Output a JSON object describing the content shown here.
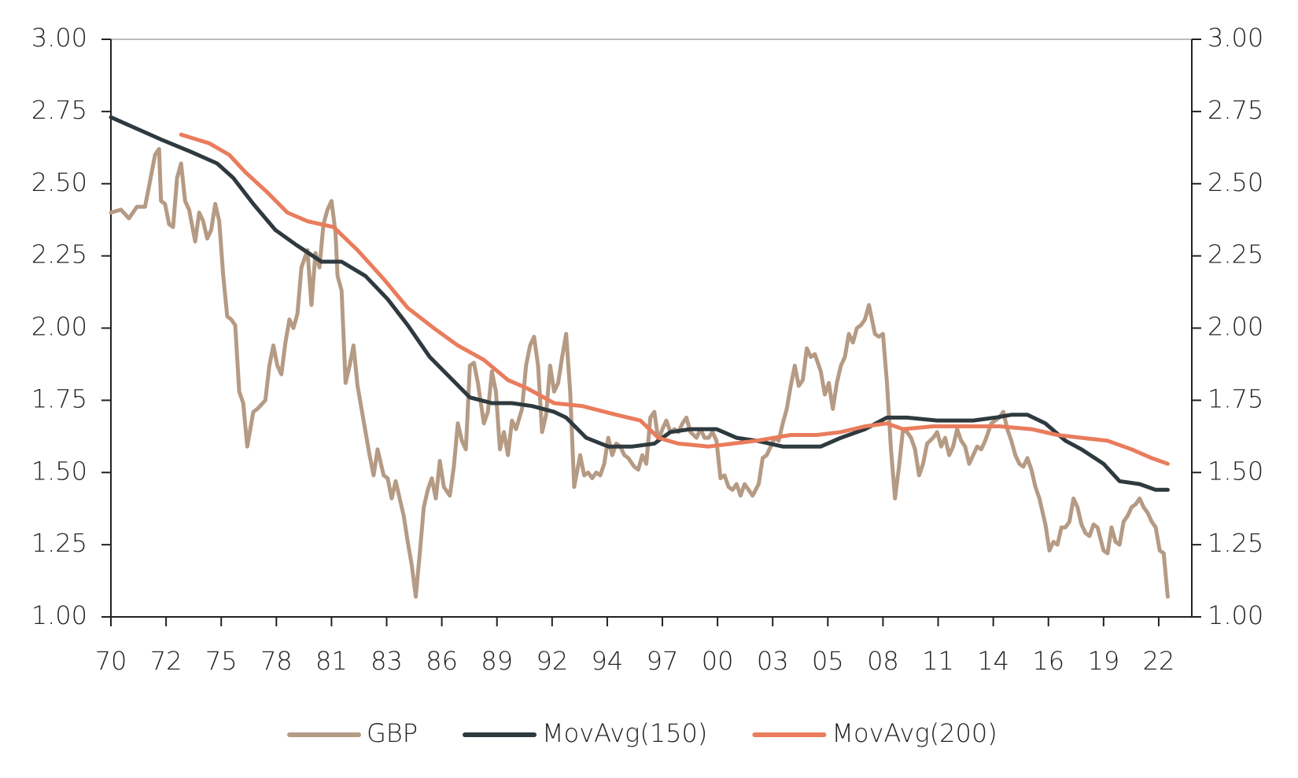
{
  "chart_data": {
    "type": "line",
    "xlim": [
      1970,
      2023.9
    ],
    "xticks": [
      {
        "value": 1970,
        "label": "70"
      },
      {
        "value": 1972.75,
        "label": "72"
      },
      {
        "value": 1975.5,
        "label": "75"
      },
      {
        "value": 1978.25,
        "label": "78"
      },
      {
        "value": 1981,
        "label": "81"
      },
      {
        "value": 1983.75,
        "label": "83"
      },
      {
        "value": 1986.5,
        "label": "86"
      },
      {
        "value": 1989.25,
        "label": "89"
      },
      {
        "value": 1992,
        "label": "92"
      },
      {
        "value": 1994.75,
        "label": "94"
      },
      {
        "value": 1997.5,
        "label": "97"
      },
      {
        "value": 2000.25,
        "label": "00"
      },
      {
        "value": 2003,
        "label": "03"
      },
      {
        "value": 2005.75,
        "label": "05"
      },
      {
        "value": 2008.5,
        "label": "08"
      },
      {
        "value": 2011.25,
        "label": "11"
      },
      {
        "value": 2014,
        "label": "14"
      },
      {
        "value": 2016.75,
        "label": "16"
      },
      {
        "value": 2019.5,
        "label": "19"
      },
      {
        "value": 2022.25,
        "label": "22"
      }
    ],
    "ylim": [
      1,
      3
    ],
    "yticks": [
      {
        "value": 1,
        "label": "1.00"
      },
      {
        "value": 1.25,
        "label": "1.25"
      },
      {
        "value": 1.5,
        "label": "1.50"
      },
      {
        "value": 1.75,
        "label": "1.75"
      },
      {
        "value": 2,
        "label": "2.00"
      },
      {
        "value": 2.25,
        "label": "2.25"
      },
      {
        "value": 2.5,
        "label": "2.50"
      },
      {
        "value": 2.75,
        "label": "2.75"
      },
      {
        "value": 3,
        "label": "3.00"
      }
    ],
    "y2lim": [
      1,
      3
    ],
    "y2ticks": [
      {
        "value": 1,
        "label": "1.00"
      },
      {
        "value": 1.25,
        "label": "1.25"
      },
      {
        "value": 1.5,
        "label": "1.50"
      },
      {
        "value": 1.75,
        "label": "1.75"
      },
      {
        "value": 2,
        "label": "2.00"
      },
      {
        "value": 2.25,
        "label": "2.25"
      },
      {
        "value": 2.5,
        "label": "2.50"
      },
      {
        "value": 2.75,
        "label": "2.75"
      },
      {
        "value": 3,
        "label": "3.00"
      }
    ],
    "grid": false,
    "legend": "bottom",
    "series": [
      {
        "name": "GBP",
        "color": "#b59a84",
        "x": [
          1970.0,
          1970.5,
          1970.9,
          1971.1,
          1971.3,
          1971.7,
          1971.9,
          1972.2,
          1972.4,
          1972.5,
          1972.7,
          1972.9,
          1973.1,
          1973.3,
          1973.5,
          1973.7,
          1973.9,
          1974.2,
          1974.4,
          1974.6,
          1974.8,
          1975.0,
          1975.2,
          1975.4,
          1975.6,
          1975.8,
          1976.0,
          1976.2,
          1976.4,
          1976.6,
          1976.8,
          1977.1,
          1977.3,
          1977.7,
          1977.9,
          1978.1,
          1978.3,
          1978.5,
          1978.7,
          1978.9,
          1979.1,
          1979.3,
          1979.5,
          1979.8,
          1980.0,
          1980.2,
          1980.4,
          1980.6,
          1980.8,
          1981.0,
          1981.2,
          1981.3,
          1981.5,
          1981.7,
          1981.9,
          1982.1,
          1982.3,
          1982.5,
          1982.7,
          1982.9,
          1983.1,
          1983.3,
          1983.6,
          1983.8,
          1984.0,
          1984.2,
          1984.4,
          1984.6,
          1984.8,
          1985.0,
          1985.2,
          1985.4,
          1985.6,
          1985.8,
          1986.0,
          1986.2,
          1986.4,
          1986.6,
          1986.9,
          1987.1,
          1987.3,
          1987.5,
          1987.7,
          1987.9,
          1988.1,
          1988.3,
          1988.6,
          1988.8,
          1989.0,
          1989.2,
          1989.4,
          1989.6,
          1989.8,
          1990.0,
          1990.2,
          1990.5,
          1990.7,
          1990.9,
          1991.1,
          1991.3,
          1991.5,
          1991.7,
          1991.9,
          1992.1,
          1992.3,
          1992.5,
          1992.7,
          1992.9,
          1993.1,
          1993.4,
          1993.6,
          1993.8,
          1994.0,
          1994.2,
          1994.4,
          1994.6,
          1994.8,
          1995.0,
          1995.2,
          1995.4,
          1995.6,
          1995.8,
          1996.1,
          1996.3,
          1996.5,
          1996.7,
          1996.9,
          1997.1,
          1997.3,
          1997.5,
          1997.7,
          1997.9,
          1998.1,
          1998.3,
          1998.5,
          1998.7,
          1998.9,
          1999.2,
          1999.4,
          1999.6,
          1999.8,
          2000.0,
          2000.2,
          2000.4,
          2000.6,
          2000.8,
          2001.0,
          2001.2,
          2001.4,
          2001.6,
          2001.8,
          2002.0,
          2002.3,
          2002.5,
          2002.7,
          2002.9,
          2003.1,
          2003.3,
          2003.5,
          2003.7,
          2003.9,
          2004.1,
          2004.3,
          2004.5,
          2004.7,
          2004.9,
          2005.1,
          2005.4,
          2005.6,
          2005.8,
          2006.0,
          2006.2,
          2006.4,
          2006.6,
          2006.8,
          2007.0,
          2007.2,
          2007.4,
          2007.6,
          2007.8,
          2008.1,
          2008.3,
          2008.5,
          2008.7,
          2008.9,
          2009.1,
          2009.3,
          2009.5,
          2009.7,
          2009.9,
          2010.1,
          2010.3,
          2010.5,
          2010.7,
          2011.0,
          2011.2,
          2011.4,
          2011.6,
          2011.8,
          2012.0,
          2012.2,
          2012.4,
          2012.6,
          2012.8,
          2013.0,
          2013.2,
          2013.4,
          2013.6,
          2013.9,
          2014.1,
          2014.3,
          2014.5,
          2014.7,
          2014.9,
          2015.1,
          2015.3,
          2015.5,
          2015.7,
          2015.9,
          2016.1,
          2016.3,
          2016.6,
          2016.8,
          2017.0,
          2017.2,
          2017.4,
          2017.6,
          2017.8,
          2018.0,
          2018.2,
          2018.4,
          2018.6,
          2018.8,
          2019.0,
          2019.2,
          2019.5,
          2019.7,
          2019.9,
          2020.1,
          2020.3,
          2020.5,
          2020.7,
          2020.9,
          2021.1,
          2021.3,
          2021.5,
          2021.7,
          2021.9,
          2022.1,
          2022.3,
          2022.5,
          2022.7
        ],
        "values": [
          2.4,
          2.41,
          2.38,
          2.4,
          2.42,
          2.42,
          2.49,
          2.6,
          2.62,
          2.44,
          2.43,
          2.36,
          2.35,
          2.52,
          2.57,
          2.44,
          2.41,
          2.3,
          2.4,
          2.37,
          2.31,
          2.34,
          2.43,
          2.37,
          2.18,
          2.04,
          2.03,
          2.01,
          1.78,
          1.74,
          1.59,
          1.71,
          1.72,
          1.75,
          1.87,
          1.94,
          1.87,
          1.84,
          1.95,
          2.03,
          2.0,
          2.05,
          2.21,
          2.27,
          2.08,
          2.26,
          2.21,
          2.36,
          2.41,
          2.44,
          2.33,
          2.18,
          2.13,
          1.81,
          1.87,
          1.94,
          1.8,
          1.72,
          1.64,
          1.56,
          1.49,
          1.58,
          1.49,
          1.48,
          1.41,
          1.47,
          1.41,
          1.35,
          1.26,
          1.18,
          1.07,
          1.22,
          1.38,
          1.44,
          1.48,
          1.41,
          1.54,
          1.45,
          1.42,
          1.52,
          1.67,
          1.61,
          1.58,
          1.87,
          1.88,
          1.81,
          1.67,
          1.71,
          1.85,
          1.78,
          1.58,
          1.64,
          1.56,
          1.68,
          1.65,
          1.72,
          1.87,
          1.94,
          1.97,
          1.87,
          1.64,
          1.7,
          1.87,
          1.78,
          1.81,
          1.9,
          1.98,
          1.78,
          1.45,
          1.56,
          1.49,
          1.5,
          1.48,
          1.5,
          1.49,
          1.53,
          1.62,
          1.56,
          1.6,
          1.59,
          1.56,
          1.55,
          1.52,
          1.51,
          1.56,
          1.53,
          1.69,
          1.71,
          1.61,
          1.65,
          1.68,
          1.64,
          1.65,
          1.64,
          1.67,
          1.69,
          1.64,
          1.62,
          1.65,
          1.62,
          1.62,
          1.64,
          1.61,
          1.48,
          1.49,
          1.45,
          1.44,
          1.46,
          1.42,
          1.46,
          1.44,
          1.42,
          1.46,
          1.55,
          1.56,
          1.59,
          1.62,
          1.61,
          1.67,
          1.72,
          1.8,
          1.87,
          1.8,
          1.82,
          1.93,
          1.9,
          1.91,
          1.85,
          1.77,
          1.81,
          1.72,
          1.81,
          1.87,
          1.9,
          1.98,
          1.95,
          2.0,
          2.01,
          2.03,
          2.08,
          1.98,
          1.97,
          1.98,
          1.81,
          1.58,
          1.41,
          1.52,
          1.65,
          1.64,
          1.62,
          1.58,
          1.49,
          1.53,
          1.6,
          1.62,
          1.64,
          1.59,
          1.62,
          1.56,
          1.59,
          1.65,
          1.61,
          1.59,
          1.53,
          1.56,
          1.59,
          1.58,
          1.61,
          1.67,
          1.68,
          1.69,
          1.71,
          1.65,
          1.61,
          1.56,
          1.53,
          1.52,
          1.55,
          1.51,
          1.45,
          1.41,
          1.32,
          1.23,
          1.26,
          1.25,
          1.31,
          1.31,
          1.33,
          1.41,
          1.38,
          1.32,
          1.29,
          1.28,
          1.32,
          1.31,
          1.23,
          1.22,
          1.31,
          1.26,
          1.25,
          1.33,
          1.35,
          1.38,
          1.39,
          1.41,
          1.38,
          1.36,
          1.33,
          1.31,
          1.23,
          1.22,
          1.07
        ]
      },
      {
        "name": "MovAvg(150)",
        "color": "#2e3a3f",
        "x": [
          1970.0,
          1971.3,
          1972.6,
          1974.0,
          1975.3,
          1976.1,
          1977.1,
          1978.2,
          1979.2,
          1980.5,
          1981.5,
          1982.7,
          1983.8,
          1984.8,
          1985.9,
          1986.9,
          1987.9,
          1989.0,
          1990.0,
          1991.0,
          1992.1,
          1992.7,
          1993.7,
          1994.8,
          1996.0,
          1997.1,
          1997.9,
          1998.9,
          2000.2,
          2001.2,
          2002.2,
          2003.5,
          2005.4,
          2006.4,
          2007.6,
          2008.7,
          2009.7,
          2011.2,
          2013.0,
          2014.1,
          2014.9,
          2015.7,
          2016.6,
          2017.6,
          2018.4,
          2019.5,
          2020.3,
          2021.3,
          2022.1,
          2022.7
        ],
        "values": [
          2.73,
          2.69,
          2.65,
          2.61,
          2.57,
          2.52,
          2.43,
          2.34,
          2.29,
          2.23,
          2.23,
          2.18,
          2.1,
          2.01,
          1.9,
          1.83,
          1.76,
          1.74,
          1.74,
          1.73,
          1.71,
          1.69,
          1.62,
          1.59,
          1.59,
          1.6,
          1.64,
          1.65,
          1.65,
          1.62,
          1.61,
          1.59,
          1.59,
          1.62,
          1.65,
          1.69,
          1.69,
          1.68,
          1.68,
          1.69,
          1.7,
          1.7,
          1.67,
          1.61,
          1.58,
          1.53,
          1.47,
          1.46,
          1.44,
          1.44
        ]
      },
      {
        "name": "MovAvg(200)",
        "color": "#e97c5c",
        "x": [
          1973.5,
          1974.9,
          1975.9,
          1976.7,
          1977.8,
          1978.8,
          1979.8,
          1981.1,
          1982.3,
          1983.6,
          1984.8,
          1986.1,
          1987.3,
          1988.6,
          1989.8,
          1990.8,
          1992.1,
          1993.5,
          1995.2,
          1996.4,
          1997.3,
          1998.3,
          1999.8,
          2001.0,
          2002.2,
          2003.9,
          2005.2,
          2006.4,
          2007.6,
          2008.7,
          2009.5,
          2011.0,
          2012.6,
          2014.3,
          2015.9,
          2017.2,
          2018.4,
          2019.7,
          2020.9,
          2021.9,
          2022.7
        ],
        "values": [
          2.67,
          2.64,
          2.6,
          2.54,
          2.47,
          2.4,
          2.37,
          2.35,
          2.27,
          2.17,
          2.07,
          2.0,
          1.94,
          1.89,
          1.82,
          1.79,
          1.74,
          1.73,
          1.7,
          1.68,
          1.62,
          1.6,
          1.59,
          1.6,
          1.61,
          1.63,
          1.63,
          1.64,
          1.66,
          1.67,
          1.65,
          1.66,
          1.66,
          1.66,
          1.65,
          1.63,
          1.62,
          1.61,
          1.58,
          1.55,
          1.53
        ]
      }
    ]
  }
}
